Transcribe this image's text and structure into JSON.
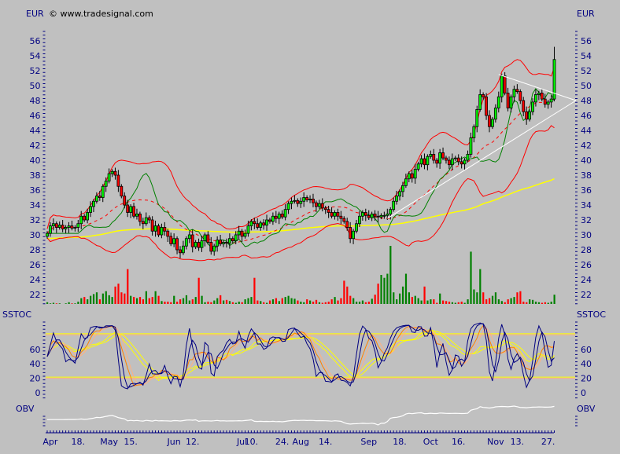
{
  "header": {
    "currency_left": "EUR",
    "currency_right": "EUR",
    "copyright": "© www.tradesignal.com"
  },
  "panels": {
    "stoch_label_left": "SSTOC",
    "stoch_label_right": "SSTOC",
    "obv_label_left": "OBV",
    "obv_label_right": "OBV"
  },
  "colors": {
    "background": "#c0c0c0",
    "axis": "#000080",
    "candle_up": "#00ff00",
    "candle_down": "#ff0000",
    "volume_up": "#008000",
    "volume_down": "#ff0000",
    "bollinger": "#ff0000",
    "long_ma": "#ffff00",
    "lagging_line": "#008000",
    "triangle": "#ffffff",
    "stoch_fast": "#000080",
    "stoch_slow": "#ff8000",
    "stoch_slow2": "#ffb080",
    "stoch_yellow": "#ffff00",
    "obv": "#ffffff"
  },
  "chart_data": [
    {
      "type": "candlestick",
      "panel": "price",
      "ylim": [
        20,
        58
      ],
      "yticks": [
        22,
        24,
        26,
        28,
        30,
        32,
        34,
        36,
        38,
        40,
        42,
        44,
        46,
        48,
        50,
        52,
        54,
        56
      ],
      "xtick_labels": [
        {
          "label": "Apr",
          "day": 1
        },
        {
          "label": "18.",
          "day": 10
        },
        {
          "label": "May",
          "day": 20
        },
        {
          "label": "15.",
          "day": 27
        },
        {
          "label": "Jun",
          "day": 41
        },
        {
          "label": "12.",
          "day": 47
        },
        {
          "label": "Jul",
          "day": 63
        },
        {
          "label": "10.",
          "day": 66
        },
        {
          "label": "24.",
          "day": 76
        },
        {
          "label": "Aug",
          "day": 82
        },
        {
          "label": "14.",
          "day": 90
        },
        {
          "label": "Sep",
          "day": 104
        },
        {
          "label": "18.",
          "day": 114
        },
        {
          "label": "Oct",
          "day": 124
        },
        {
          "label": "16.",
          "day": 133
        },
        {
          "label": "Nov",
          "day": 145
        },
        {
          "label": "13.",
          "day": 152
        },
        {
          "label": "27.",
          "day": 162
        }
      ],
      "close": [
        30.2,
        31.2,
        31.5,
        31.0,
        31.3,
        30.8,
        31.0,
        31.2,
        30.9,
        31.0,
        31.5,
        32.5,
        32.0,
        33.0,
        33.8,
        34.5,
        35.2,
        35.0,
        36.5,
        37.2,
        38.2,
        38.5,
        38.0,
        36.5,
        35.2,
        34.0,
        33.0,
        33.8,
        32.5,
        32.8,
        31.8,
        31.5,
        32.3,
        32.0,
        30.5,
        31.2,
        30.0,
        31.0,
        30.5,
        29.8,
        28.8,
        29.5,
        28.0,
        27.6,
        28.5,
        29.5,
        30.0,
        28.4,
        29.0,
        28.3,
        29.2,
        30.0,
        29.0,
        27.8,
        28.5,
        29.3,
        28.8,
        29.0,
        28.9,
        29.5,
        29.2,
        30.0,
        30.5,
        29.8,
        30.2,
        31.2,
        31.8,
        31.5,
        31.0,
        31.6,
        31.3,
        32.0,
        31.8,
        32.5,
        32.2,
        32.8,
        32.4,
        33.4,
        34.2,
        34.5,
        34.6,
        34.2,
        34.5,
        35.0,
        34.7,
        34.8,
        34.3,
        33.8,
        34.2,
        33.6,
        33.4,
        33.0,
        32.5,
        33.0,
        32.5,
        32.2,
        31.8,
        31.0,
        29.5,
        30.5,
        31.5,
        32.5,
        33.0,
        32.6,
        32.3,
        32.8,
        32.5,
        32.4,
        32.6,
        32.6,
        32.8,
        33.4,
        34.5,
        35.2,
        35.8,
        36.6,
        37.5,
        38.2,
        37.6,
        38.8,
        39.5,
        40.2,
        39.4,
        40.5,
        40.8,
        40.0,
        39.6,
        41.0,
        40.3,
        40.0,
        39.4,
        40.2,
        40.3,
        39.8,
        39.5,
        40.0,
        40.8,
        43.0,
        44.5,
        46.8,
        48.8,
        48.5,
        46.0,
        44.5,
        45.5,
        47.0,
        48.5,
        51.3,
        49.0,
        47.0,
        48.5,
        49.5,
        49.2,
        48.0,
        46.5,
        45.5,
        46.5,
        47.8,
        48.8,
        49.0,
        48.2,
        47.5,
        47.8,
        48.2,
        53.5
      ],
      "volume": [
        3,
        1,
        2,
        1,
        1,
        0,
        1,
        3,
        1,
        1,
        4,
        10,
        12,
        8,
        14,
        17,
        20,
        8,
        18,
        22,
        15,
        12,
        30,
        35,
        20,
        18,
        60,
        14,
        12,
        10,
        12,
        8,
        22,
        10,
        12,
        22,
        14,
        5,
        4,
        4,
        3,
        14,
        4,
        8,
        10,
        15,
        6,
        8,
        12,
        45,
        14,
        3,
        4,
        3,
        6,
        10,
        15,
        6,
        7,
        5,
        3,
        2,
        4,
        3,
        8,
        10,
        12,
        45,
        6,
        5,
        3,
        2,
        6,
        8,
        10,
        5,
        10,
        12,
        14,
        10,
        9,
        6,
        4,
        3,
        8,
        6,
        4,
        7,
        3,
        2,
        3,
        4,
        8,
        12,
        6,
        10,
        40,
        30,
        14,
        10,
        4,
        4,
        6,
        3,
        4,
        9,
        16,
        35,
        50,
        45,
        52,
        100,
        20,
        8,
        18,
        30,
        52,
        20,
        12,
        14,
        10,
        6,
        30,
        6,
        8,
        8,
        2,
        18,
        6,
        5,
        4,
        3,
        2,
        3,
        4,
        2,
        8,
        90,
        25,
        20,
        60,
        20,
        8,
        10,
        14,
        20,
        8,
        5,
        3,
        8,
        10,
        12,
        20,
        22,
        4,
        3,
        8,
        7,
        4,
        3,
        2,
        3,
        2,
        4,
        16
      ],
      "indicators": [
        "bollinger bands",
        "long moving average",
        "lagging line"
      ],
      "triangle": {
        "upper": [
          {
            "day": 146,
            "price": 51.5
          },
          {
            "day": 171,
            "price": 48
          }
        ],
        "lower": [
          {
            "day": 110,
            "price": 32.2
          },
          {
            "day": 171,
            "price": 48
          }
        ]
      }
    },
    {
      "type": "line",
      "panel": "stochastic",
      "ylim": [
        0,
        100
      ],
      "yticks": [
        0,
        20,
        40,
        60
      ],
      "levels": [
        80,
        20
      ]
    },
    {
      "type": "line",
      "panel": "obv"
    }
  ]
}
